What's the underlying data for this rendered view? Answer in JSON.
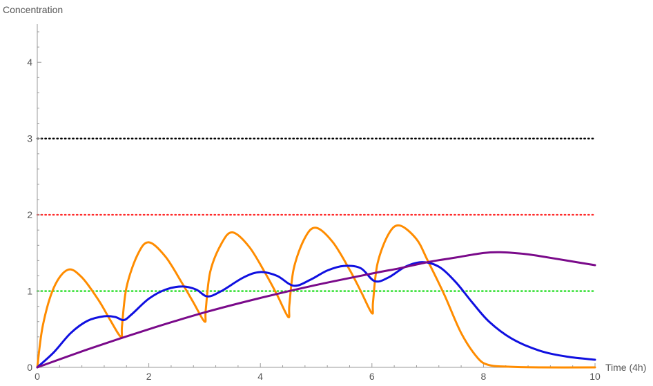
{
  "chart_data": {
    "type": "line",
    "title": "",
    "xlabel": "Time (4h)",
    "ylabel": "Concentration",
    "xlim": [
      0,
      10
    ],
    "ylim": [
      0,
      4.5
    ],
    "grid": false,
    "x_major_ticks": [
      0,
      2,
      4,
      6,
      8,
      10
    ],
    "y_major_ticks": [
      0,
      1,
      2,
      3,
      4
    ],
    "x_tick_labels": [
      "0",
      "2",
      "4",
      "6",
      "8",
      "10"
    ],
    "y_tick_labels": [
      "0",
      "1",
      "2",
      "3",
      "4"
    ],
    "reference_lines": [
      {
        "y": 3,
        "color": "#000000",
        "style": "dotted"
      },
      {
        "y": 2,
        "color": "#ff2a2a",
        "style": "dotted"
      },
      {
        "y": 1,
        "color": "#22dd22",
        "style": "dotted"
      }
    ],
    "series": [
      {
        "color": "#ff8c00",
        "x": [
          0,
          0.1,
          0.3,
          0.55,
          0.8,
          1.1,
          1.3,
          1.5,
          1.52,
          1.6,
          1.8,
          2.0,
          2.3,
          2.6,
          2.8,
          3.0,
          3.02,
          3.1,
          3.3,
          3.5,
          3.8,
          4.1,
          4.3,
          4.5,
          4.52,
          4.6,
          4.8,
          5.0,
          5.3,
          5.6,
          5.8,
          6.0,
          6.02,
          6.1,
          6.3,
          6.5,
          6.8,
          7.0,
          7.3,
          7.6,
          7.9,
          8.1,
          8.4,
          9.0,
          10.0
        ],
        "y": [
          0,
          0.55,
          1.05,
          1.28,
          1.18,
          0.88,
          0.63,
          0.4,
          0.55,
          1.05,
          1.48,
          1.64,
          1.45,
          1.1,
          0.85,
          0.6,
          0.75,
          1.25,
          1.62,
          1.77,
          1.58,
          1.22,
          0.95,
          0.66,
          0.82,
          1.3,
          1.7,
          1.83,
          1.64,
          1.28,
          1.0,
          0.71,
          0.86,
          1.36,
          1.75,
          1.86,
          1.68,
          1.4,
          0.95,
          0.45,
          0.12,
          0.03,
          0.01,
          0.0,
          0.0
        ]
      },
      {
        "color": "#1010e0",
        "x": [
          0,
          0.3,
          0.6,
          0.9,
          1.2,
          1.4,
          1.55,
          1.7,
          2.0,
          2.3,
          2.6,
          2.85,
          3.05,
          3.3,
          3.7,
          4.0,
          4.3,
          4.6,
          4.9,
          5.2,
          5.5,
          5.8,
          6.05,
          6.3,
          6.6,
          6.9,
          7.2,
          7.5,
          7.8,
          8.1,
          8.5,
          9.0,
          9.5,
          10.0
        ],
        "y": [
          0,
          0.2,
          0.45,
          0.61,
          0.67,
          0.66,
          0.62,
          0.7,
          0.9,
          1.02,
          1.06,
          1.02,
          0.93,
          1.0,
          1.18,
          1.25,
          1.2,
          1.07,
          1.15,
          1.27,
          1.33,
          1.3,
          1.13,
          1.18,
          1.32,
          1.38,
          1.32,
          1.12,
          0.85,
          0.6,
          0.38,
          0.22,
          0.14,
          0.1
        ]
      },
      {
        "color": "#7a0a8a",
        "x": [
          0,
          1,
          2,
          3,
          4,
          5,
          6,
          6.5,
          7,
          7.5,
          8,
          8.3,
          8.7,
          9,
          9.5,
          10
        ],
        "y": [
          0,
          0.26,
          0.5,
          0.72,
          0.91,
          1.08,
          1.23,
          1.3,
          1.38,
          1.44,
          1.5,
          1.51,
          1.49,
          1.46,
          1.4,
          1.34
        ]
      }
    ]
  }
}
